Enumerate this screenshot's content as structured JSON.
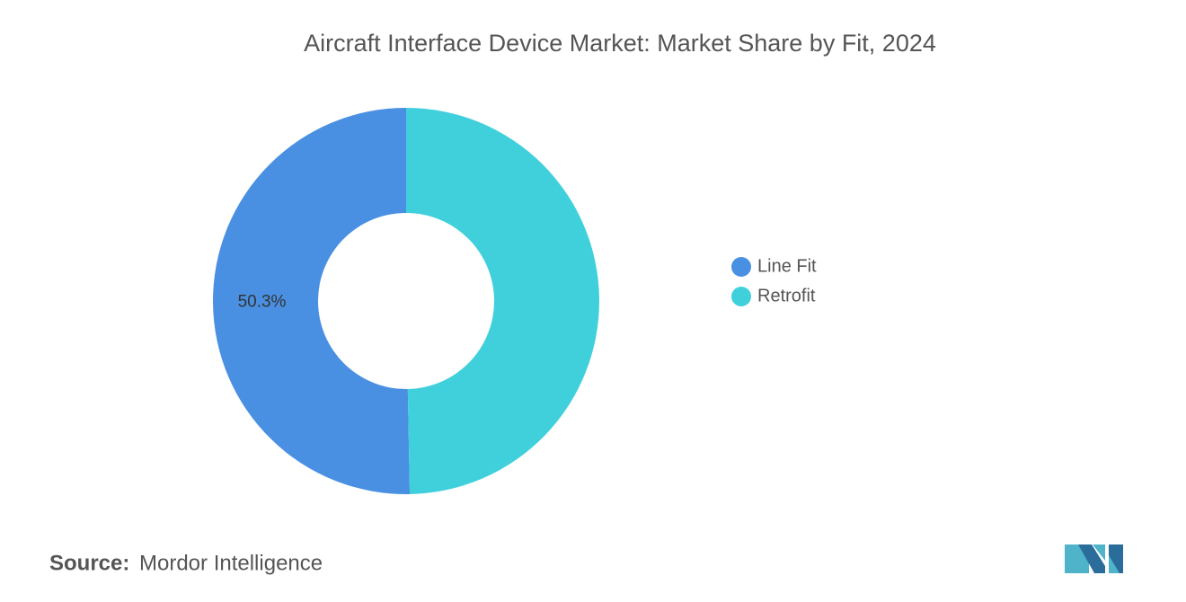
{
  "chart_data": {
    "type": "donut",
    "title": "Aircraft Interface Device Market: Market Share by Fit, 2024",
    "categories": [
      "Line Fit",
      "Retrofit"
    ],
    "values": [
      50.3,
      49.7
    ],
    "value_labels": [
      "50.3%",
      null
    ],
    "colors": [
      "#4a90e2",
      "#40d0dc"
    ]
  },
  "footer": {
    "source_label": "Source:",
    "source": "Mordor Intelligence"
  }
}
